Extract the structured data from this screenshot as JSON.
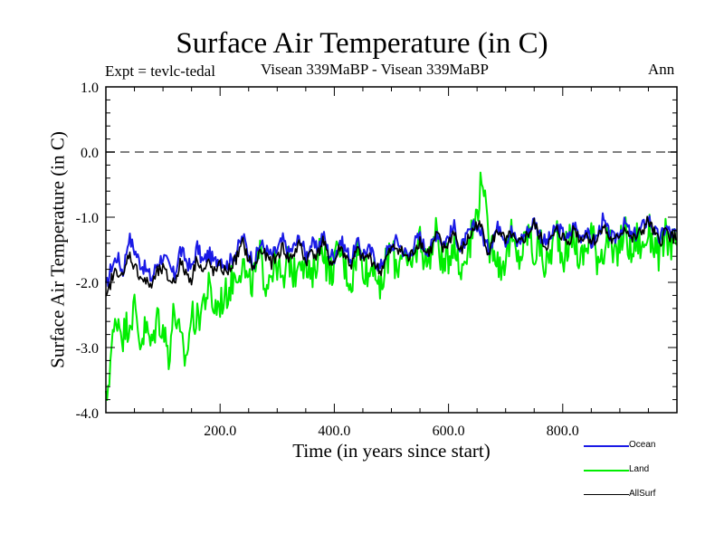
{
  "chart_data": {
    "type": "line",
    "title": "Surface Air Temperature (in C)",
    "subtitle_left": "Expt = tevlc-tedal",
    "subtitle_center": "Visean 339MaBP - Visean 339MaBP",
    "subtitle_right": "Ann",
    "xlabel": "Time (in years since start)",
    "ylabel": "Surface Air Temperature (in C)",
    "xlim": [
      0,
      1000
    ],
    "ylim": [
      -4.0,
      1.0
    ],
    "xticks": [
      200,
      400,
      600,
      800
    ],
    "xtick_labels": [
      "200.0",
      "400.0",
      "600.0",
      "800.0"
    ],
    "yticks": [
      1.0,
      0.0,
      -1.0,
      -2.0,
      -3.0,
      -4.0
    ],
    "ytick_labels": [
      "1.0",
      "0.0",
      "-1.0",
      "-2.0",
      "-3.0",
      "-4.0"
    ],
    "x_minor_step": 50,
    "y_minor_step": 0.2,
    "reference_line": {
      "y": 0.0,
      "style": "dashed",
      "color": "#808080"
    },
    "legend": {
      "placement": "bottom-right, below axes"
    },
    "x_step": 10,
    "x_start": 0,
    "series": [
      {
        "name": "Ocean",
        "color": "#1a1ae6",
        "values": [
          -2.1,
          -1.75,
          -1.6,
          -1.85,
          -1.3,
          -1.5,
          -1.7,
          -1.8,
          -1.95,
          -1.7,
          -1.6,
          -1.75,
          -1.9,
          -1.5,
          -1.65,
          -1.8,
          -1.45,
          -1.7,
          -1.55,
          -1.7,
          -1.6,
          -1.75,
          -1.65,
          -1.5,
          -1.3,
          -1.55,
          -1.7,
          -1.4,
          -1.5,
          -1.6,
          -1.5,
          -1.35,
          -1.55,
          -1.45,
          -1.3,
          -1.6,
          -1.4,
          -1.5,
          -1.25,
          -1.55,
          -1.6,
          -1.35,
          -1.5,
          -1.65,
          -1.4,
          -1.55,
          -1.5,
          -1.6,
          -1.8,
          -1.55,
          -1.45,
          -1.35,
          -1.5,
          -1.6,
          -1.4,
          -1.3,
          -1.5,
          -1.45,
          -1.2,
          -1.4,
          -1.3,
          -1.15,
          -1.5,
          -1.35,
          -1.2,
          -1.1,
          -1.3,
          -1.5,
          -1.25,
          -1.1,
          -1.35,
          -1.2,
          -1.4,
          -1.3,
          -1.2,
          -1.05,
          -1.25,
          -1.4,
          -1.3,
          -1.15,
          -1.25,
          -1.35,
          -1.1,
          -1.3,
          -1.2,
          -1.4,
          -1.3,
          -1.05,
          -1.25,
          -1.35,
          -1.2,
          -1.1,
          -1.3,
          -1.25,
          -1.15,
          -1.0,
          -1.2,
          -1.35,
          -1.15,
          -1.25
        ]
      },
      {
        "name": "Land",
        "color": "#00ee00",
        "values": [
          -3.9,
          -3.0,
          -2.5,
          -2.8,
          -2.6,
          -2.4,
          -2.9,
          -2.7,
          -3.0,
          -2.5,
          -2.7,
          -3.1,
          -2.4,
          -2.9,
          -3.2,
          -2.5,
          -2.6,
          -2.3,
          -2.1,
          -2.4,
          -2.3,
          -2.2,
          -2.0,
          -1.8,
          -1.7,
          -2.1,
          -1.9,
          -1.6,
          -2.0,
          -1.8,
          -1.7,
          -2.1,
          -1.6,
          -1.9,
          -1.5,
          -1.8,
          -2.0,
          -1.6,
          -1.4,
          -1.9,
          -1.7,
          -1.5,
          -1.8,
          -2.0,
          -1.5,
          -1.7,
          -1.9,
          -1.6,
          -2.3,
          -1.7,
          -1.5,
          -1.8,
          -1.4,
          -1.9,
          -1.6,
          -1.3,
          -1.7,
          -1.5,
          -1.2,
          -1.8,
          -1.6,
          -1.3,
          -1.9,
          -1.5,
          -1.3,
          -0.9,
          -0.3,
          -1.5,
          -1.4,
          -1.8,
          -1.6,
          -1.3,
          -1.7,
          -1.5,
          -1.2,
          -1.6,
          -1.4,
          -1.8,
          -1.5,
          -1.2,
          -1.6,
          -1.4,
          -1.3,
          -1.7,
          -1.5,
          -1.2,
          -1.6,
          -1.5,
          -1.3,
          -1.7,
          -1.4,
          -1.2,
          -1.6,
          -1.3,
          -1.5,
          -1.2,
          -1.4,
          -1.6,
          -1.3,
          -1.4
        ]
      },
      {
        "name": "AllSurf",
        "color": "#000000",
        "values": [
          -2.3,
          -1.95,
          -1.8,
          -1.95,
          -1.55,
          -1.75,
          -1.9,
          -2.0,
          -2.05,
          -1.85,
          -1.8,
          -1.95,
          -2.0,
          -1.7,
          -1.85,
          -1.95,
          -1.6,
          -1.85,
          -1.7,
          -1.85,
          -1.75,
          -1.85,
          -1.75,
          -1.6,
          -1.4,
          -1.65,
          -1.8,
          -1.5,
          -1.6,
          -1.7,
          -1.6,
          -1.45,
          -1.65,
          -1.55,
          -1.4,
          -1.7,
          -1.5,
          -1.6,
          -1.35,
          -1.65,
          -1.7,
          -1.45,
          -1.6,
          -1.75,
          -1.5,
          -1.65,
          -1.6,
          -1.7,
          -1.85,
          -1.65,
          -1.5,
          -1.45,
          -1.55,
          -1.65,
          -1.5,
          -1.35,
          -1.55,
          -1.5,
          -1.25,
          -1.5,
          -1.4,
          -1.2,
          -1.55,
          -1.4,
          -1.25,
          -1.1,
          -1.2,
          -1.55,
          -1.3,
          -1.2,
          -1.4,
          -1.25,
          -1.45,
          -1.35,
          -1.25,
          -1.1,
          -1.3,
          -1.45,
          -1.35,
          -1.2,
          -1.3,
          -1.4,
          -1.15,
          -1.35,
          -1.25,
          -1.35,
          -1.35,
          -1.1,
          -1.3,
          -1.4,
          -1.25,
          -1.15,
          -1.35,
          -1.3,
          -1.2,
          -1.05,
          -1.25,
          -1.4,
          -1.2,
          -1.3
        ]
      }
    ]
  }
}
